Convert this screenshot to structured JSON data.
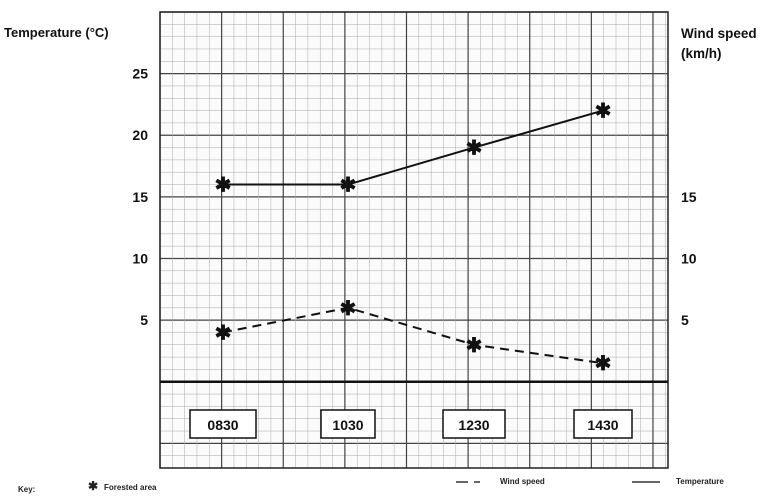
{
  "chart_data": {
    "type": "line",
    "y_left_label": "Temperature (°C)",
    "y_right_label_line1": "Wind speed",
    "y_right_label_line2": "(km/h)",
    "y_left_ticks": [
      "25",
      "20",
      "15",
      "10",
      "5"
    ],
    "y_right_ticks": [
      "15",
      "10",
      "5"
    ],
    "ylim": [
      -7,
      30
    ],
    "categories": [
      "0830",
      "1030",
      "1230",
      "1430"
    ],
    "series": [
      {
        "name": "Temperature",
        "axis": "left",
        "style": "solid",
        "values": [
          16,
          16,
          19,
          22
        ]
      },
      {
        "name": "Wind speed",
        "axis": "right",
        "style": "dashed",
        "values": [
          4,
          6,
          3,
          1.5
        ]
      }
    ],
    "grid": true,
    "marker": "asterisk"
  },
  "key": {
    "title": "Key:",
    "marker_label": "Forested area",
    "wind_label": "Wind speed",
    "temp_label": "Temperature"
  }
}
